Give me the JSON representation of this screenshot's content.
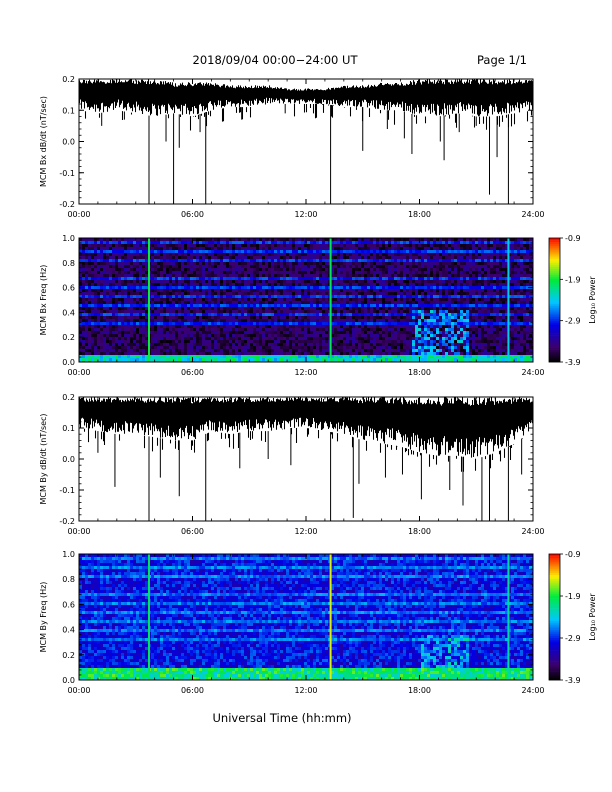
{
  "header": {
    "title": "2018/09/04  00:00−24:00 UT",
    "page": "Page 1/1"
  },
  "footer": {
    "xlabel": "Universal Time (hh:mm)"
  },
  "chart_data": [
    {
      "type": "line",
      "ylabel": "MCM Bx dB/dt (nT/sec)",
      "xlim": [
        "00:00",
        "24:00"
      ],
      "ylim": [
        -0.2,
        0.2
      ],
      "x_ticks": [
        "00:00",
        "06:00",
        "12:00",
        "18:00",
        "24:00"
      ],
      "y_ticks": [
        "-0.2",
        "-0.1",
        "0.0",
        "0.1",
        "0.2"
      ],
      "envelope": {
        "x_hours": [
          0,
          1,
          2,
          3,
          4,
          5,
          6,
          7,
          8,
          9,
          10,
          11,
          12,
          13,
          14,
          15,
          16,
          17,
          18,
          19,
          20,
          21,
          22,
          23,
          24
        ],
        "upper": [
          0.2,
          0.2,
          0.2,
          0.2,
          0.2,
          0.19,
          0.19,
          0.19,
          0.18,
          0.18,
          0.18,
          0.17,
          0.17,
          0.17,
          0.18,
          0.18,
          0.19,
          0.19,
          0.2,
          0.2,
          0.2,
          0.2,
          0.2,
          0.2,
          0.2
        ],
        "lower": [
          0.1,
          0.09,
          0.1,
          0.09,
          0.08,
          0.09,
          0.08,
          0.1,
          0.11,
          0.11,
          0.12,
          0.12,
          0.12,
          0.12,
          0.11,
          0.11,
          0.1,
          0.1,
          0.08,
          0.08,
          0.09,
          0.08,
          0.08,
          0.09,
          0.1
        ]
      },
      "spikes": [
        {
          "x": 1.2,
          "y": 0.05
        },
        {
          "x": 2.4,
          "y": 0.07
        },
        {
          "x": 3.7,
          "y": -0.2
        },
        {
          "x": 4.6,
          "y": 0.0
        },
        {
          "x": 5.0,
          "y": -0.2
        },
        {
          "x": 5.3,
          "y": -0.02
        },
        {
          "x": 6.4,
          "y": 0.03
        },
        {
          "x": 6.7,
          "y": -0.2
        },
        {
          "x": 8.6,
          "y": 0.07
        },
        {
          "x": 10.9,
          "y": 0.09
        },
        {
          "x": 13.3,
          "y": -0.2
        },
        {
          "x": 15.0,
          "y": -0.03
        },
        {
          "x": 16.3,
          "y": 0.04
        },
        {
          "x": 17.2,
          "y": 0.01
        },
        {
          "x": 17.6,
          "y": -0.04
        },
        {
          "x": 19.1,
          "y": 0.0
        },
        {
          "x": 19.3,
          "y": -0.06
        },
        {
          "x": 20.1,
          "y": 0.03
        },
        {
          "x": 21.0,
          "y": 0.05
        },
        {
          "x": 21.7,
          "y": -0.17
        },
        {
          "x": 22.1,
          "y": -0.05
        },
        {
          "x": 22.7,
          "y": -0.2
        }
      ]
    },
    {
      "type": "heatmap",
      "ylabel": "MCM Bx Freq (Hz)",
      "xlim": [
        "00:00",
        "24:00"
      ],
      "ylim": [
        0.0,
        1.0
      ],
      "x_ticks": [
        "00:00",
        "06:00",
        "12:00",
        "18:00",
        "24:00"
      ],
      "y_ticks": [
        "0.0",
        "0.2",
        "0.4",
        "0.6",
        "0.8",
        "1.0"
      ],
      "colorbar": {
        "label": "Log₁₀ Power",
        "range": [
          -3.9,
          -0.9
        ],
        "ticks": [
          "-0.9",
          "-1.9",
          "-2.9",
          "-3.9"
        ]
      },
      "background_level": -3.6,
      "harmonic_bands_hz": [
        0.06,
        0.12,
        0.19,
        0.26,
        0.33,
        0.4,
        0.47,
        0.54,
        0.61,
        0.68,
        0.76,
        0.83,
        0.9,
        0.97
      ],
      "band_level": -2.9,
      "low_freq_enhancement": {
        "below_hz": 0.07,
        "level": -2.4
      },
      "broadband_events": [
        {
          "x_hours": 3.7,
          "level": -1.9
        },
        {
          "x_hours": 13.3,
          "level": -2.0
        },
        {
          "x_hours": 22.7,
          "level": -2.4
        }
      ],
      "enhanced_region": {
        "x_hours": [
          17.5,
          20.5
        ],
        "max_hz": 0.42,
        "level": -2.6
      }
    },
    {
      "type": "line",
      "ylabel": "MCM By dB/dt (nT/sec)",
      "xlim": [
        "00:00",
        "24:00"
      ],
      "ylim": [
        -0.2,
        0.2
      ],
      "x_ticks": [
        "00:00",
        "06:00",
        "12:00",
        "18:00",
        "24:00"
      ],
      "y_ticks": [
        "-0.2",
        "-0.1",
        "0.0",
        "0.1",
        "0.2"
      ],
      "envelope": {
        "x_hours": [
          0,
          1,
          2,
          3,
          4,
          5,
          6,
          7,
          8,
          9,
          10,
          11,
          12,
          13,
          14,
          15,
          16,
          17,
          18,
          19,
          20,
          21,
          22,
          23,
          24
        ],
        "upper": [
          0.2,
          0.2,
          0.2,
          0.2,
          0.2,
          0.2,
          0.2,
          0.2,
          0.2,
          0.2,
          0.2,
          0.2,
          0.2,
          0.2,
          0.2,
          0.2,
          0.2,
          0.2,
          0.2,
          0.2,
          0.2,
          0.2,
          0.2,
          0.2,
          0.2
        ],
        "lower": [
          0.1,
          0.09,
          0.08,
          0.08,
          0.07,
          0.06,
          0.06,
          0.09,
          0.08,
          0.09,
          0.09,
          0.1,
          0.1,
          0.09,
          0.08,
          0.06,
          0.05,
          0.04,
          0.02,
          0.01,
          0.01,
          0.0,
          0.02,
          0.05,
          0.09
        ]
      },
      "spikes": [
        {
          "x": 1.0,
          "y": 0.02
        },
        {
          "x": 1.9,
          "y": -0.09
        },
        {
          "x": 3.7,
          "y": -0.2
        },
        {
          "x": 4.3,
          "y": -0.06
        },
        {
          "x": 5.3,
          "y": -0.12
        },
        {
          "x": 6.7,
          "y": -0.2
        },
        {
          "x": 8.5,
          "y": -0.03
        },
        {
          "x": 10.0,
          "y": 0.0
        },
        {
          "x": 11.2,
          "y": -0.02
        },
        {
          "x": 13.3,
          "y": -0.2
        },
        {
          "x": 14.5,
          "y": -0.19
        },
        {
          "x": 14.8,
          "y": -0.08
        },
        {
          "x": 16.2,
          "y": -0.06
        },
        {
          "x": 17.1,
          "y": -0.05
        },
        {
          "x": 18.1,
          "y": -0.13
        },
        {
          "x": 19.6,
          "y": -0.1
        },
        {
          "x": 20.3,
          "y": -0.15
        },
        {
          "x": 21.3,
          "y": -0.2
        },
        {
          "x": 21.7,
          "y": -0.2
        },
        {
          "x": 22.7,
          "y": -0.2
        },
        {
          "x": 23.4,
          "y": -0.05
        }
      ]
    },
    {
      "type": "heatmap",
      "ylabel": "MCM By Freq (Hz)",
      "xlim": [
        "00:00",
        "24:00"
      ],
      "ylim": [
        0.0,
        1.0
      ],
      "x_ticks": [
        "00:00",
        "06:00",
        "12:00",
        "18:00",
        "24:00"
      ],
      "y_ticks": [
        "0.0",
        "0.2",
        "0.4",
        "0.6",
        "0.8",
        "1.0"
      ],
      "colorbar": {
        "label": "Log₁₀ Power",
        "range": [
          -3.9,
          -0.9
        ],
        "ticks": [
          "-0.9",
          "-1.9",
          "-2.9",
          "-3.9"
        ]
      },
      "background_level": -3.0,
      "harmonic_bands_hz": [
        0.06,
        0.12,
        0.19,
        0.26,
        0.33,
        0.4,
        0.47,
        0.54,
        0.61,
        0.68,
        0.76,
        0.83,
        0.9,
        0.97
      ],
      "band_level": -2.7,
      "low_freq_enhancement": {
        "below_hz": 0.09,
        "level": -2.2
      },
      "broadband_events": [
        {
          "x_hours": 3.7,
          "level": -2.0
        },
        {
          "x_hours": 13.3,
          "level": -1.5
        },
        {
          "x_hours": 22.7,
          "level": -2.2
        }
      ],
      "enhanced_region": {
        "x_hours": [
          18.0,
          20.5
        ],
        "max_hz": 0.35,
        "level": -2.5
      }
    }
  ]
}
